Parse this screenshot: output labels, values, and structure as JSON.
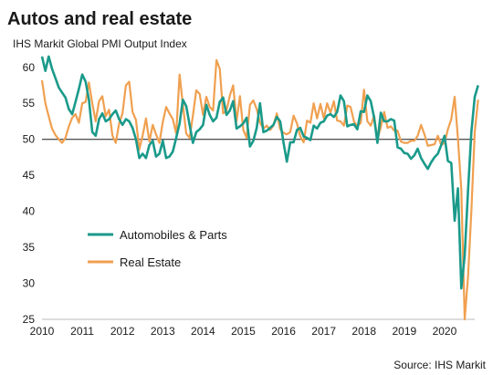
{
  "chart_data": {
    "type": "line",
    "title": "Autos and real estate",
    "subtitle": "IHS Markit Global PMI Output Index",
    "source": "Source: IHS Markit",
    "xlabel": "",
    "ylabel": "",
    "x_start": 2010.0,
    "x_step": 0.0833333,
    "xlim": [
      2010.0,
      2020.75
    ],
    "ylim": [
      25,
      62
    ],
    "y_ticks": [
      25,
      30,
      35,
      40,
      45,
      50,
      55,
      60
    ],
    "x_ticks": [
      "2010",
      "2011",
      "2012",
      "2013",
      "2014",
      "2015",
      "2016",
      "2017",
      "2018",
      "2019",
      "2020"
    ],
    "reference_line": 50,
    "legend_position": "center-left",
    "series": [
      {
        "name": "Automobiles & Parts",
        "color": "#1a9a8a",
        "values": [
          61.5,
          59.5,
          61.5,
          59.8,
          58.5,
          57.2,
          56.5,
          55.8,
          54.2,
          53.5,
          55.2,
          57.0,
          59.0,
          58.0,
          55.5,
          51.0,
          50.5,
          52.8,
          53.6,
          52.5,
          52.8,
          53.5,
          54.0,
          52.8,
          52.0,
          52.8,
          52.5,
          51.6,
          50.0,
          47.4,
          48.0,
          47.4,
          49.2,
          49.8,
          47.6,
          48.0,
          49.8,
          47.4,
          47.6,
          48.3,
          50.2,
          52.2,
          55.5,
          54.6,
          52.0,
          49.5,
          51.0,
          51.4,
          52.0,
          54.8,
          53.4,
          52.5,
          53.0,
          55.2,
          55.8,
          53.4,
          54.0,
          55.3,
          51.5,
          51.8,
          52.2,
          53.0,
          49.0,
          49.8,
          51.6,
          55.0,
          51.0,
          51.2,
          51.6,
          52.0,
          53.1,
          52.5,
          49.5,
          46.9,
          49.6,
          49.6,
          51.3,
          51.6,
          50.4,
          50.2,
          49.9,
          51.9,
          51.5,
          52.3,
          52.5,
          53.3,
          53.5,
          53.1,
          53.8,
          56.1,
          55.3,
          51.8,
          52.0,
          52.1,
          51.4,
          53.9,
          53.8,
          56.1,
          55.3,
          53.0,
          49.5,
          53.7,
          52.5,
          52.5,
          52.8,
          52.6,
          48.9,
          48.7,
          48.1,
          48.0,
          47.3,
          47.8,
          48.7,
          47.4,
          46.6,
          45.9,
          46.8,
          47.5,
          48.0,
          49.2,
          50.5,
          47.0,
          46.7,
          38.7,
          43.2,
          29.3,
          33.9,
          43.0,
          51.0,
          55.9,
          57.5
        ]
      },
      {
        "name": "Real Estate",
        "color": "#f0a050",
        "values": [
          58.2,
          55.0,
          53.2,
          51.5,
          50.6,
          50.0,
          49.5,
          50.2,
          51.8,
          53.0,
          53.5,
          52.3,
          55.0,
          55.2,
          57.9,
          55.0,
          52.5,
          55.3,
          56.0,
          53.2,
          54.1,
          50.5,
          49.5,
          52.2,
          53.6,
          57.5,
          58.0,
          53.8,
          52.7,
          48.6,
          50.5,
          52.9,
          49.7,
          52.0,
          50.7,
          49.5,
          52.4,
          54.5,
          53.6,
          52.8,
          50.8,
          59.0,
          54.8,
          50.8,
          50.2,
          53.3,
          56.8,
          56.3,
          53.4,
          55.9,
          54.5,
          54.0,
          61.0,
          59.8,
          53.6,
          54.0,
          56.1,
          57.5,
          52.5,
          56.0,
          51.3,
          50.2,
          54.8,
          55.4,
          54.2,
          52.3,
          51.5,
          51.9,
          51.3,
          51.9,
          53.6,
          51.4,
          50.9,
          50.7,
          51.0,
          53.3,
          52.2,
          50.4,
          49.6,
          52.6,
          52.3,
          55.0,
          52.9,
          54.9,
          52.9,
          55.0,
          53.7,
          55.3,
          52.6,
          52.5,
          51.9,
          54.7,
          54.5,
          52.5,
          51.8,
          52.3,
          56.9,
          52.5,
          51.9,
          53.3,
          50.0,
          51.7,
          53.8,
          51.6,
          51.8,
          51.2,
          51.2,
          49.7,
          49.5,
          49.5,
          49.8,
          49.8,
          50.5,
          52.0,
          50.7,
          49.1,
          49.2,
          49.3,
          50.5,
          49.2,
          49.5,
          51.4,
          52.8,
          55.9,
          50.1,
          43.0,
          25.0,
          31.0,
          40.0,
          51.0,
          55.5
        ]
      }
    ]
  }
}
